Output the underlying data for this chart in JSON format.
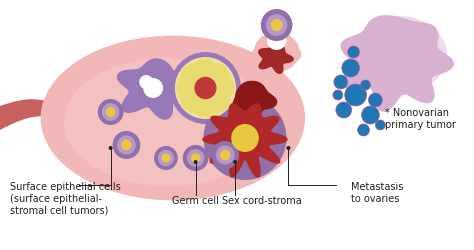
{
  "bg_color": "#ffffff",
  "ovary_color": "#f2b8b8",
  "ovary_edge_color": "#d97070",
  "fallopian_color": "#c96060",
  "labels": {
    "surface_epithelial": "Surface epithelial cells\n(surface epithelial-\nstromal cell tumors)",
    "germ_cell": "Germ cell",
    "sex_cord": "Sex cord-stroma",
    "metastasis": "Metastasis\nto ovaries",
    "nonovarian": "* Nonovarian\nprimary tumor"
  },
  "purple_blob_color": "#9878b8",
  "yellow_flower_color": "#e8dc70",
  "red_dark_color": "#c03838",
  "germ_outer": "#9070a8",
  "germ_mid": "#b898c8",
  "germ_inner": "#e8c840",
  "sex_cord_dark": "#b02828",
  "sex_cord_red": "#c83838",
  "cloud_main": "#c898c8",
  "cloud_dark": "#b070a8",
  "font_size": 7
}
